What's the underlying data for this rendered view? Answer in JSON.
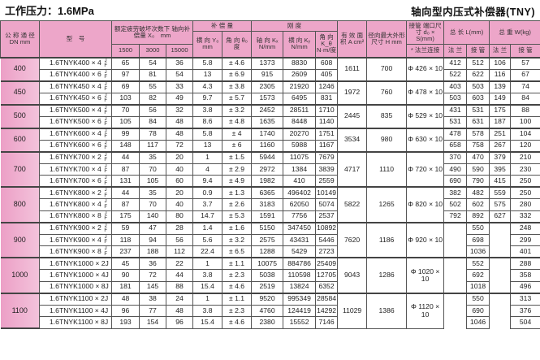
{
  "title_left": "工作压力：1.6MPa",
  "title_right": "轴向型内压式补偿器(TNY)",
  "header": {
    "dn": "公 称 通 径 DN mm",
    "model": "型　号",
    "fatigue": "额定疲劳破坏次数下 轴向补偿量 X₀　mm",
    "cycles": [
      "1500",
      "3000",
      "15000"
    ],
    "compensation": "补 偿 量",
    "lateral": "横 向 Y₀ mm",
    "angular": "角 向 θ₀ 度",
    "stiffness": "刚 度",
    "kx": "轴 向 Kₓ N/mm",
    "ky": "横 向 Kᵧ N/mm",
    "ktheta": "角 向 K_θ N·m/度",
    "area": "有 效 面 积 A cm²",
    "height": "径向最大外形尺寸 H mm",
    "pipe": "接管 端口尺寸 d₀ × S(mm)",
    "pipe_sub": "* 法兰连接",
    "length": "总 长 L(mm)",
    "weight": "总 重 W(kg)",
    "flange": "法 兰",
    "pipe_end": "接 管"
  },
  "groups": [
    {
      "dn": "400",
      "area": "1611",
      "h": "700",
      "pipe": "Φ 426 × 10",
      "rows": [
        {
          "model": "1.6TNYK400 × 4",
          "jf": true,
          "v": [
            "65",
            "54",
            "36",
            "5.8",
            "± 4.6",
            "1373",
            "8830",
            "608",
            "412",
            "512",
            "106",
            "57"
          ]
        },
        {
          "model": "1.6TNYK400 × 6",
          "jf": true,
          "v": [
            "97",
            "81",
            "54",
            "13",
            "± 6.9",
            "915",
            "2609",
            "405",
            "522",
            "622",
            "116",
            "67"
          ]
        }
      ]
    },
    {
      "dn": "450",
      "area": "1972",
      "h": "760",
      "pipe": "Φ 478 × 10",
      "rows": [
        {
          "model": "1.6TNYK450 × 4",
          "jf": true,
          "v": [
            "69",
            "55",
            "33",
            "4.3",
            "± 3.8",
            "2305",
            "21920",
            "1246",
            "403",
            "503",
            "139",
            "74"
          ]
        },
        {
          "model": "1.6TNYK450 × 6",
          "jf": true,
          "v": [
            "103",
            "82",
            "49",
            "9.7",
            "± 5.7",
            "1573",
            "6495",
            "831",
            "503",
            "603",
            "149",
            "84"
          ]
        }
      ]
    },
    {
      "dn": "500",
      "area": "2445",
      "h": "835",
      "pipe": "Φ 529 × 10",
      "rows": [
        {
          "model": "1.6TNYK500 × 4",
          "jf": true,
          "v": [
            "70",
            "56",
            "32",
            "3.8",
            "± 3.2",
            "2452",
            "28511",
            "1710",
            "431",
            "531",
            "175",
            "88"
          ]
        },
        {
          "model": "1.6TNYK500 × 6",
          "jf": true,
          "v": [
            "105",
            "84",
            "48",
            "8.6",
            "± 4.8",
            "1635",
            "8448",
            "1140",
            "531",
            "631",
            "187",
            "100"
          ]
        }
      ]
    },
    {
      "dn": "600",
      "area": "3534",
      "h": "980",
      "pipe": "Φ 630 × 10",
      "rows": [
        {
          "model": "1.6TNYK600 × 4",
          "jf": true,
          "v": [
            "99",
            "78",
            "48",
            "5.8",
            "± 4",
            "1740",
            "20270",
            "1751",
            "478",
            "578",
            "251",
            "104"
          ]
        },
        {
          "model": "1.6TNYK600 × 6",
          "jf": true,
          "v": [
            "148",
            "117",
            "72",
            "13",
            "± 6",
            "1160",
            "5988",
            "1167",
            "658",
            "758",
            "267",
            "120"
          ]
        }
      ]
    },
    {
      "dn": "700",
      "area": "4717",
      "h": "1110",
      "pipe": "Φ 720 × 10",
      "rows": [
        {
          "model": "1.6TNYK700 × 2",
          "jf": true,
          "v": [
            "44",
            "35",
            "20",
            "1",
            "± 1.5",
            "5944",
            "11075",
            "7679",
            "370",
            "470",
            "379",
            "210"
          ]
        },
        {
          "model": "1.6TNYK700 × 4",
          "jf": true,
          "v": [
            "87",
            "70",
            "40",
            "4",
            "± 2.9",
            "2972",
            "1384",
            "3839",
            "490",
            "590",
            "395",
            "230"
          ]
        },
        {
          "model": "1.6TNYK700 × 6",
          "jf": true,
          "v": [
            "131",
            "105",
            "60",
            "9.4",
            "± 4.9",
            "1982",
            "410",
            "2559",
            "690",
            "790",
            "415",
            "250"
          ]
        }
      ]
    },
    {
      "dn": "800",
      "area": "5822",
      "h": "1265",
      "pipe": "Φ 820 × 10",
      "rows": [
        {
          "model": "1.6TNYK800 × 2",
          "jf": true,
          "v": [
            "44",
            "35",
            "20",
            "0.9",
            "± 1.3",
            "6365",
            "496402",
            "10149",
            "382",
            "482",
            "559",
            "250"
          ]
        },
        {
          "model": "1.6TNYK800 × 4",
          "jf": true,
          "v": [
            "87",
            "70",
            "40",
            "3.7",
            "± 2.6",
            "3183",
            "62050",
            "5074",
            "502",
            "602",
            "575",
            "280"
          ]
        },
        {
          "model": "1.6TNYK800 × 8",
          "jf": true,
          "v": [
            "175",
            "140",
            "80",
            "14.7",
            "± 5.3",
            "1591",
            "7756",
            "2537",
            "792",
            "892",
            "627",
            "332"
          ]
        }
      ]
    },
    {
      "dn": "900",
      "area": "7620",
      "h": "1186",
      "pipe": "Φ 920 × 10",
      "rows": [
        {
          "model": "1.6TNYK900 × 2",
          "jf": true,
          "v": [
            "59",
            "47",
            "28",
            "1.4",
            "± 1.6",
            "5150",
            "347450",
            "10892",
            "",
            "550",
            "",
            "248"
          ]
        },
        {
          "model": "1.6TNYK900 × 4",
          "jf": true,
          "v": [
            "118",
            "94",
            "56",
            "5.6",
            "± 3.2",
            "2575",
            "43431",
            "5446",
            "",
            "698",
            "",
            "299"
          ]
        },
        {
          "model": "1.6TNYK900 × 8",
          "jf": true,
          "v": [
            "237",
            "188",
            "112",
            "22.4",
            "± 6.5",
            "1288",
            "5429",
            "2723",
            "",
            "1036",
            "",
            "401"
          ]
        }
      ]
    },
    {
      "dn": "1000",
      "area": "9043",
      "h": "1286",
      "pipe": "Φ 1020 × 10",
      "rows": [
        {
          "model": "1.6TNYK1000 × 2J",
          "jf": false,
          "v": [
            "45",
            "36",
            "22",
            "1",
            "± 1.1",
            "10075",
            "884786",
            "25409",
            "",
            "552",
            "",
            "288"
          ]
        },
        {
          "model": "1.6TNYK1000 × 4J",
          "jf": false,
          "v": [
            "90",
            "72",
            "44",
            "3.8",
            "± 2.3",
            "5038",
            "110598",
            "12705",
            "",
            "692",
            "",
            "358"
          ]
        },
        {
          "model": "1.6TNYK1000 × 8J",
          "jf": false,
          "v": [
            "181",
            "145",
            "88",
            "15.4",
            "± 4.6",
            "2519",
            "13824",
            "6352",
            "",
            "1018",
            "",
            "496"
          ]
        }
      ]
    },
    {
      "dn": "1100",
      "area": "11029",
      "h": "1386",
      "pipe": "Φ 1120 × 10",
      "rows": [
        {
          "model": "1.6TNYK1100 × 2J",
          "jf": false,
          "v": [
            "48",
            "38",
            "24",
            "1",
            "± 1.1",
            "9520",
            "995349",
            "28584",
            "",
            "550",
            "",
            "313"
          ]
        },
        {
          "model": "1.6TNYK1100 × 4J",
          "jf": false,
          "v": [
            "96",
            "77",
            "48",
            "3.8",
            "± 2.3",
            "4760",
            "124419",
            "14292",
            "",
            "690",
            "",
            "376"
          ]
        },
        {
          "model": "1.6TNYK1100 × 8J",
          "jf": false,
          "v": [
            "193",
            "154",
            "96",
            "15.4",
            "± 4.6",
            "2380",
            "15552",
            "7146",
            "",
            "1046",
            "",
            "504"
          ]
        }
      ]
    }
  ],
  "jf_label": [
    "J",
    "F"
  ],
  "colors": {
    "header_pink": "#eda6c9",
    "dn_pink": "#ec9fc6"
  }
}
